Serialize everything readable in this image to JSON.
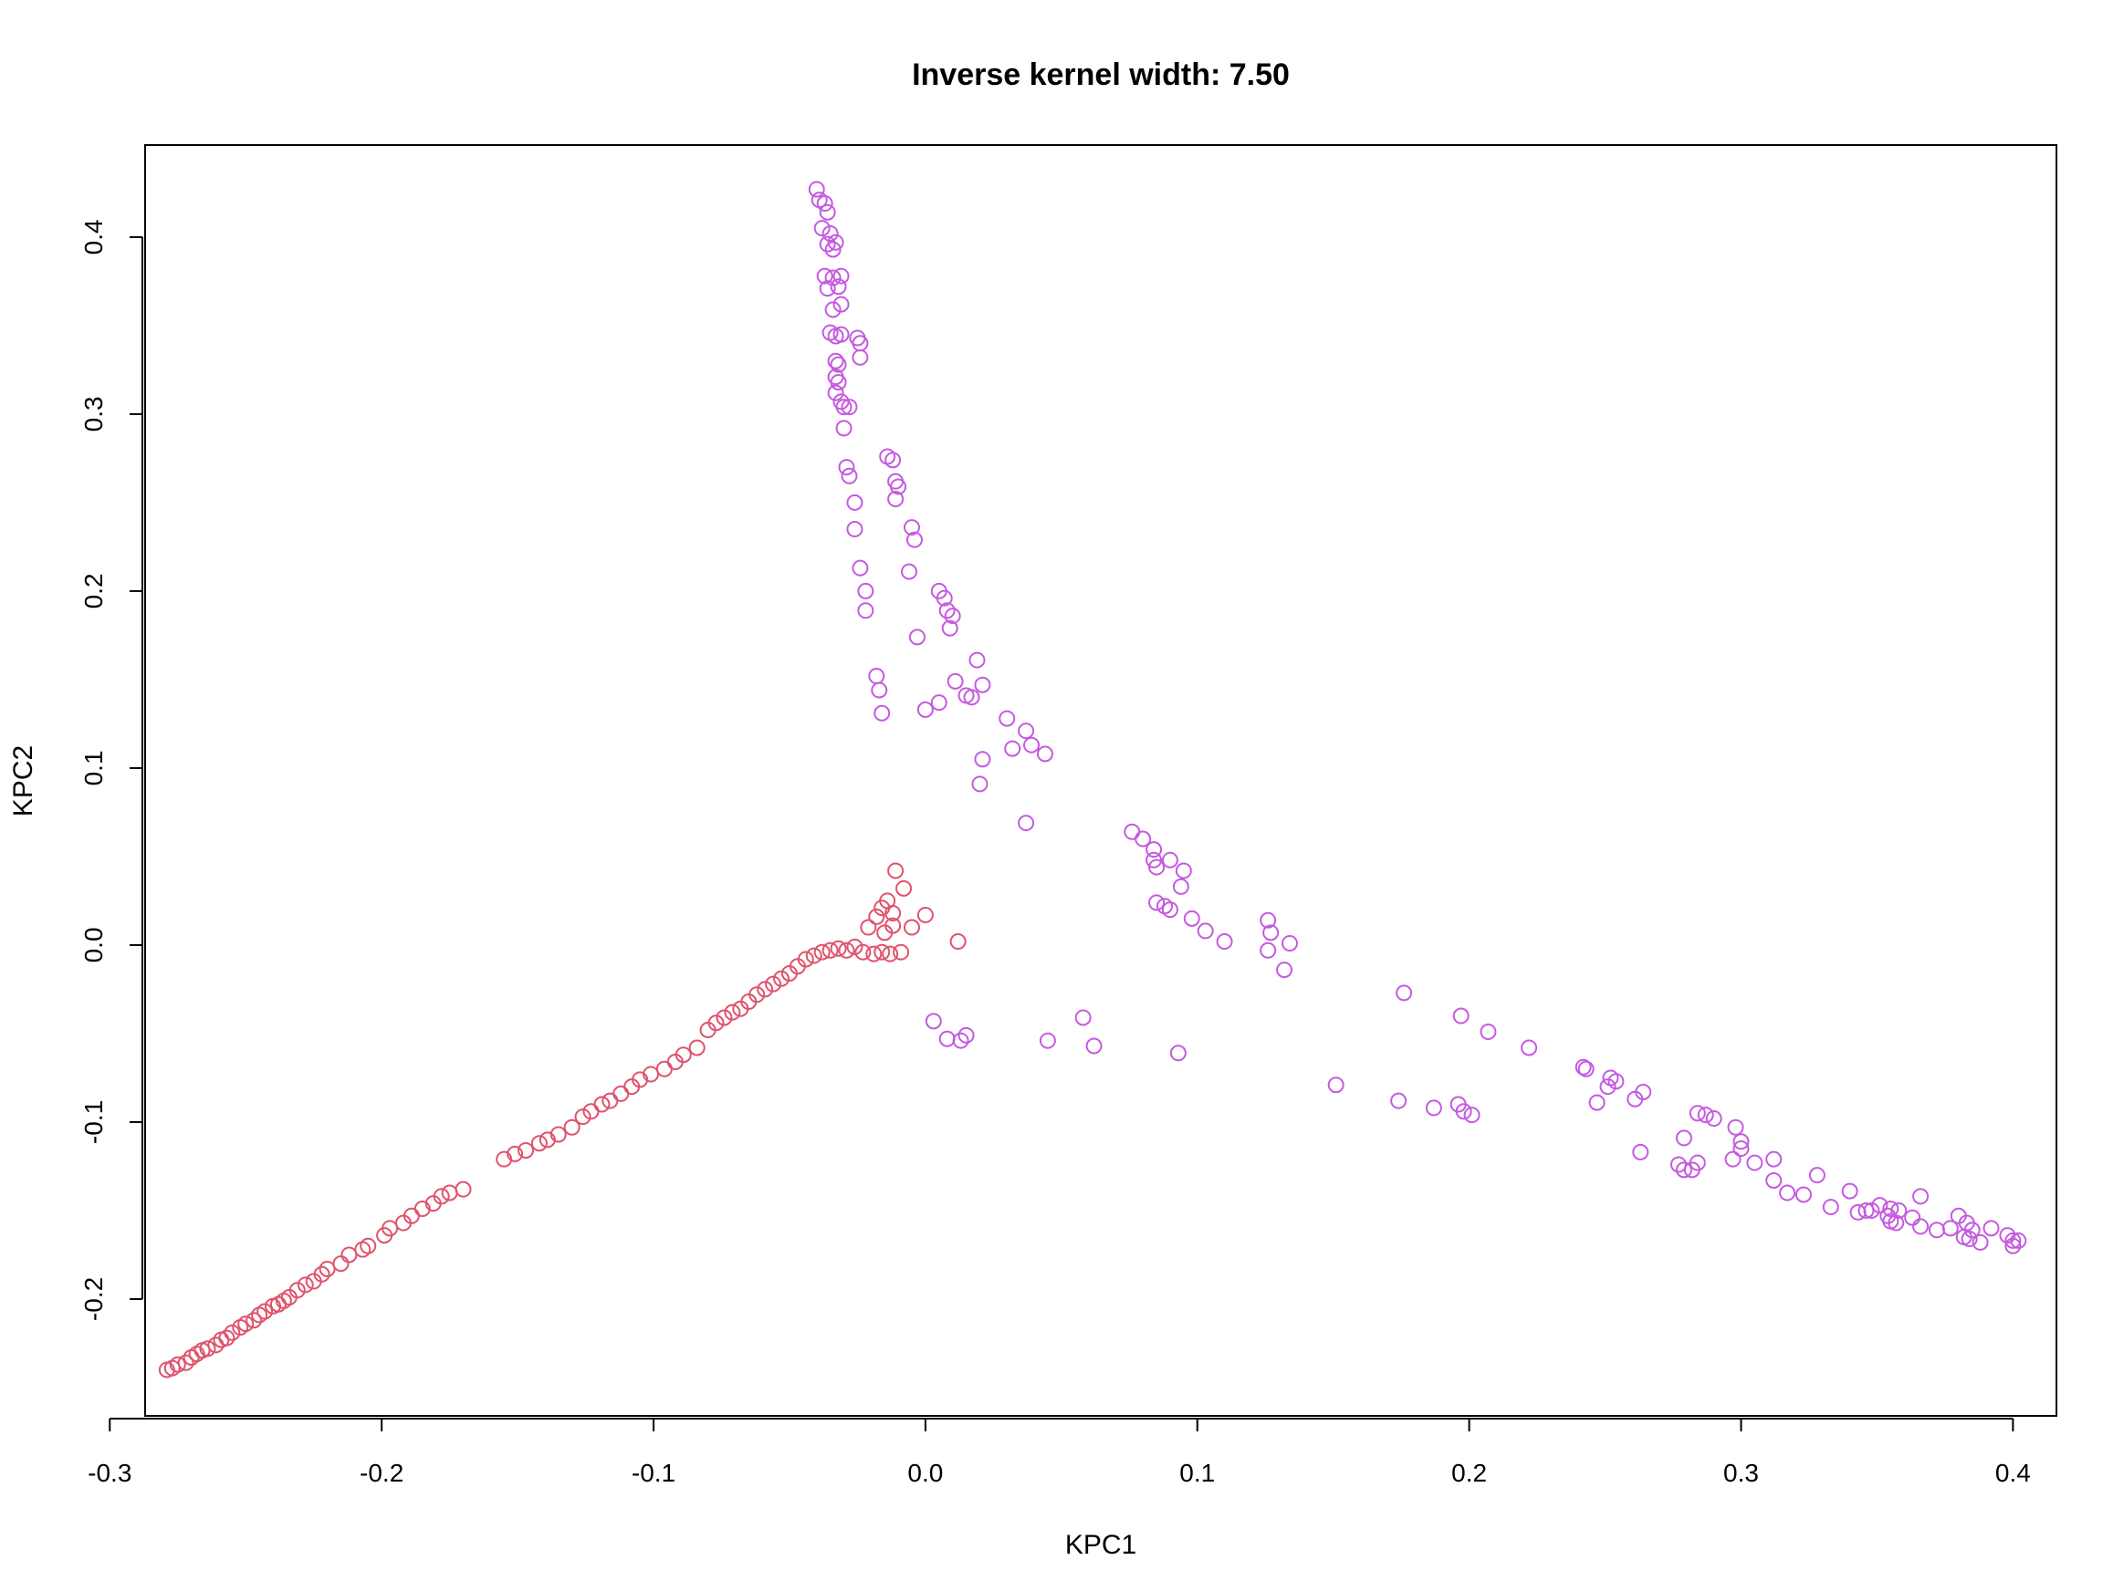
{
  "chart_data": {
    "type": "scatter",
    "title": "Inverse kernel width: 7.50",
    "xlabel": "KPC1",
    "ylabel": "KPC2",
    "xlim": [
      -0.287,
      0.416
    ],
    "ylim": [
      -0.266,
      0.452
    ],
    "xticks": [
      -0.3,
      -0.2,
      -0.1,
      0.0,
      0.1,
      0.2,
      0.3,
      0.4
    ],
    "xtick_labels": [
      "-0.3",
      "-0.2",
      "-0.1",
      "0.0",
      "0.1",
      "0.2",
      "0.3",
      "0.4"
    ],
    "yticks": [
      -0.2,
      -0.1,
      0.0,
      0.1,
      0.2,
      0.3,
      0.4
    ],
    "ytick_labels": [
      "-0.2",
      "-0.1",
      "0.0",
      "0.1",
      "0.2",
      "0.3",
      "0.4"
    ],
    "grid": false,
    "marker": "open-circle",
    "colors": {
      "red_group": "#DF536B",
      "purple_group": "#C55AE0",
      "axis": "#000000"
    },
    "series": [
      {
        "color": "#DF536B",
        "points": [
          [
            -0.279,
            -0.24
          ],
          [
            -0.277,
            -0.239
          ],
          [
            -0.275,
            -0.237
          ],
          [
            -0.272,
            -0.236
          ],
          [
            -0.27,
            -0.233
          ],
          [
            -0.268,
            -0.231
          ],
          [
            -0.266,
            -0.229
          ],
          [
            -0.264,
            -0.228
          ],
          [
            -0.261,
            -0.226
          ],
          [
            -0.259,
            -0.223
          ],
          [
            -0.257,
            -0.222
          ],
          [
            -0.255,
            -0.219
          ],
          [
            -0.252,
            -0.216
          ],
          [
            -0.25,
            -0.214
          ],
          [
            -0.247,
            -0.212
          ],
          [
            -0.245,
            -0.209
          ],
          [
            -0.243,
            -0.207
          ],
          [
            -0.24,
            -0.204
          ],
          [
            -0.238,
            -0.203
          ],
          [
            -0.236,
            -0.201
          ],
          [
            -0.234,
            -0.199
          ],
          [
            -0.231,
            -0.195
          ],
          [
            -0.228,
            -0.192
          ],
          [
            -0.225,
            -0.19
          ],
          [
            -0.222,
            -0.186
          ],
          [
            -0.22,
            -0.183
          ],
          [
            -0.215,
            -0.18
          ],
          [
            -0.212,
            -0.175
          ],
          [
            -0.207,
            -0.172
          ],
          [
            -0.205,
            -0.17
          ],
          [
            -0.199,
            -0.164
          ],
          [
            -0.197,
            -0.16
          ],
          [
            -0.192,
            -0.157
          ],
          [
            -0.189,
            -0.153
          ],
          [
            -0.185,
            -0.149
          ],
          [
            -0.181,
            -0.146
          ],
          [
            -0.178,
            -0.142
          ],
          [
            -0.175,
            -0.14
          ],
          [
            -0.17,
            -0.138
          ],
          [
            -0.155,
            -0.121
          ],
          [
            -0.151,
            -0.118
          ],
          [
            -0.147,
            -0.116
          ],
          [
            -0.142,
            -0.112
          ],
          [
            -0.139,
            -0.11
          ],
          [
            -0.135,
            -0.107
          ],
          [
            -0.13,
            -0.103
          ],
          [
            -0.126,
            -0.097
          ],
          [
            -0.123,
            -0.094
          ],
          [
            -0.119,
            -0.09
          ],
          [
            -0.116,
            -0.088
          ],
          [
            -0.112,
            -0.084
          ],
          [
            -0.108,
            -0.08
          ],
          [
            -0.105,
            -0.076
          ],
          [
            -0.101,
            -0.073
          ],
          [
            -0.096,
            -0.07
          ],
          [
            -0.092,
            -0.066
          ],
          [
            -0.089,
            -0.062
          ],
          [
            -0.084,
            -0.058
          ],
          [
            -0.08,
            -0.048
          ],
          [
            -0.077,
            -0.044
          ],
          [
            -0.074,
            -0.041
          ],
          [
            -0.071,
            -0.038
          ],
          [
            -0.068,
            -0.036
          ],
          [
            -0.065,
            -0.032
          ],
          [
            -0.062,
            -0.028
          ],
          [
            -0.059,
            -0.025
          ],
          [
            -0.056,
            -0.022
          ],
          [
            -0.053,
            -0.019
          ],
          [
            -0.05,
            -0.016
          ],
          [
            -0.047,
            -0.012
          ],
          [
            -0.044,
            -0.008
          ],
          [
            -0.041,
            -0.006
          ],
          [
            -0.038,
            -0.004
          ],
          [
            -0.035,
            -0.003
          ],
          [
            -0.032,
            -0.002
          ],
          [
            -0.029,
            -0.003
          ],
          [
            -0.026,
            -0.001
          ],
          [
            -0.023,
            -0.004
          ],
          [
            -0.019,
            -0.005
          ],
          [
            -0.016,
            -0.004
          ],
          [
            -0.013,
            -0.005
          ],
          [
            -0.009,
            -0.004
          ],
          [
            -0.021,
            0.01
          ],
          [
            -0.018,
            0.016
          ],
          [
            -0.016,
            0.021
          ],
          [
            -0.014,
            0.025
          ],
          [
            -0.012,
            0.018
          ],
          [
            -0.011,
            0.042
          ],
          [
            -0.008,
            0.032
          ],
          [
            -0.012,
            0.011
          ],
          [
            -0.015,
            0.007
          ],
          [
            -0.005,
            0.01
          ],
          [
            0.0,
            0.017
          ],
          [
            0.012,
            0.002
          ]
        ]
      },
      {
        "color": "#C55AE0",
        "points": [
          [
            -0.04,
            0.427
          ],
          [
            -0.039,
            0.421
          ],
          [
            -0.037,
            0.419
          ],
          [
            -0.036,
            0.414
          ],
          [
            -0.038,
            0.405
          ],
          [
            -0.035,
            0.402
          ],
          [
            -0.036,
            0.396
          ],
          [
            -0.034,
            0.393
          ],
          [
            -0.033,
            0.397
          ],
          [
            -0.037,
            0.378
          ],
          [
            -0.034,
            0.377
          ],
          [
            -0.031,
            0.378
          ],
          [
            -0.036,
            0.371
          ],
          [
            -0.032,
            0.372
          ],
          [
            -0.034,
            0.359
          ],
          [
            -0.031,
            0.362
          ],
          [
            -0.035,
            0.346
          ],
          [
            -0.033,
            0.344
          ],
          [
            -0.031,
            0.345
          ],
          [
            -0.025,
            0.343
          ],
          [
            -0.024,
            0.34
          ],
          [
            -0.033,
            0.33
          ],
          [
            -0.032,
            0.328
          ],
          [
            -0.024,
            0.332
          ],
          [
            -0.033,
            0.321
          ],
          [
            -0.032,
            0.318
          ],
          [
            -0.033,
            0.312
          ],
          [
            -0.031,
            0.307
          ],
          [
            -0.03,
            0.304
          ],
          [
            -0.028,
            0.304
          ],
          [
            -0.03,
            0.292
          ],
          [
            -0.029,
            0.27
          ],
          [
            -0.028,
            0.265
          ],
          [
            -0.014,
            0.276
          ],
          [
            -0.012,
            0.274
          ],
          [
            -0.011,
            0.262
          ],
          [
            -0.01,
            0.259
          ],
          [
            -0.011,
            0.252
          ],
          [
            -0.026,
            0.25
          ],
          [
            -0.005,
            0.236
          ],
          [
            -0.004,
            0.229
          ],
          [
            -0.026,
            0.235
          ],
          [
            -0.024,
            0.213
          ],
          [
            -0.022,
            0.2
          ],
          [
            -0.022,
            0.189
          ],
          [
            -0.006,
            0.211
          ],
          [
            0.005,
            0.2
          ],
          [
            0.007,
            0.196
          ],
          [
            0.008,
            0.189
          ],
          [
            0.01,
            0.186
          ],
          [
            0.009,
            0.179
          ],
          [
            -0.003,
            0.174
          ],
          [
            0.019,
            0.161
          ],
          [
            0.011,
            0.149
          ],
          [
            0.021,
            0.147
          ],
          [
            0.015,
            0.141
          ],
          [
            0.017,
            0.14
          ],
          [
            -0.018,
            0.152
          ],
          [
            -0.017,
            0.144
          ],
          [
            -0.016,
            0.131
          ],
          [
            0.0,
            0.133
          ],
          [
            0.005,
            0.137
          ],
          [
            0.03,
            0.128
          ],
          [
            0.037,
            0.121
          ],
          [
            0.032,
            0.111
          ],
          [
            0.039,
            0.113
          ],
          [
            0.044,
            0.108
          ],
          [
            0.021,
            0.105
          ],
          [
            0.02,
            0.091
          ],
          [
            0.037,
            0.069
          ],
          [
            0.076,
            0.064
          ],
          [
            0.08,
            0.06
          ],
          [
            0.084,
            0.054
          ],
          [
            0.084,
            0.048
          ],
          [
            0.09,
            0.048
          ],
          [
            0.085,
            0.044
          ],
          [
            0.095,
            0.042
          ],
          [
            0.094,
            0.033
          ],
          [
            0.085,
            0.024
          ],
          [
            0.088,
            0.022
          ],
          [
            0.09,
            0.02
          ],
          [
            0.098,
            0.015
          ],
          [
            0.103,
            0.008
          ],
          [
            0.11,
            0.002
          ],
          [
            0.126,
            0.014
          ],
          [
            0.127,
            0.007
          ],
          [
            0.134,
            0.001
          ],
          [
            0.126,
            -0.003
          ],
          [
            0.132,
            -0.014
          ],
          [
            0.003,
            -0.043
          ],
          [
            0.008,
            -0.053
          ],
          [
            0.015,
            -0.051
          ],
          [
            0.013,
            -0.054
          ],
          [
            0.045,
            -0.054
          ],
          [
            0.058,
            -0.041
          ],
          [
            0.062,
            -0.057
          ],
          [
            0.093,
            -0.061
          ],
          [
            0.151,
            -0.079
          ],
          [
            0.176,
            -0.027
          ],
          [
            0.174,
            -0.088
          ],
          [
            0.187,
            -0.092
          ],
          [
            0.196,
            -0.09
          ],
          [
            0.198,
            -0.094
          ],
          [
            0.201,
            -0.096
          ],
          [
            0.197,
            -0.04
          ],
          [
            0.207,
            -0.049
          ],
          [
            0.222,
            -0.058
          ],
          [
            0.242,
            -0.069
          ],
          [
            0.243,
            -0.07
          ],
          [
            0.252,
            -0.075
          ],
          [
            0.254,
            -0.077
          ],
          [
            0.251,
            -0.08
          ],
          [
            0.247,
            -0.089
          ],
          [
            0.261,
            -0.087
          ],
          [
            0.264,
            -0.083
          ],
          [
            0.263,
            -0.117
          ],
          [
            0.277,
            -0.124
          ],
          [
            0.279,
            -0.127
          ],
          [
            0.282,
            -0.127
          ],
          [
            0.284,
            -0.123
          ],
          [
            0.279,
            -0.109
          ],
          [
            0.284,
            -0.095
          ],
          [
            0.287,
            -0.096
          ],
          [
            0.29,
            -0.098
          ],
          [
            0.298,
            -0.103
          ],
          [
            0.3,
            -0.111
          ],
          [
            0.3,
            -0.115
          ],
          [
            0.297,
            -0.121
          ],
          [
            0.305,
            -0.123
          ],
          [
            0.312,
            -0.121
          ],
          [
            0.312,
            -0.133
          ],
          [
            0.317,
            -0.14
          ],
          [
            0.323,
            -0.141
          ],
          [
            0.328,
            -0.13
          ],
          [
            0.333,
            -0.148
          ],
          [
            0.34,
            -0.139
          ],
          [
            0.343,
            -0.151
          ],
          [
            0.346,
            -0.15
          ],
          [
            0.348,
            -0.15
          ],
          [
            0.351,
            -0.147
          ],
          [
            0.355,
            -0.149
          ],
          [
            0.354,
            -0.153
          ],
          [
            0.355,
            -0.156
          ],
          [
            0.357,
            -0.157
          ],
          [
            0.358,
            -0.15
          ],
          [
            0.363,
            -0.154
          ],
          [
            0.366,
            -0.142
          ],
          [
            0.366,
            -0.159
          ],
          [
            0.372,
            -0.161
          ],
          [
            0.377,
            -0.16
          ],
          [
            0.38,
            -0.153
          ],
          [
            0.383,
            -0.157
          ],
          [
            0.382,
            -0.165
          ],
          [
            0.385,
            -0.161
          ],
          [
            0.384,
            -0.166
          ],
          [
            0.388,
            -0.168
          ],
          [
            0.392,
            -0.16
          ],
          [
            0.398,
            -0.164
          ],
          [
            0.4,
            -0.167
          ],
          [
            0.402,
            -0.167
          ],
          [
            0.4,
            -0.17
          ]
        ]
      }
    ]
  }
}
